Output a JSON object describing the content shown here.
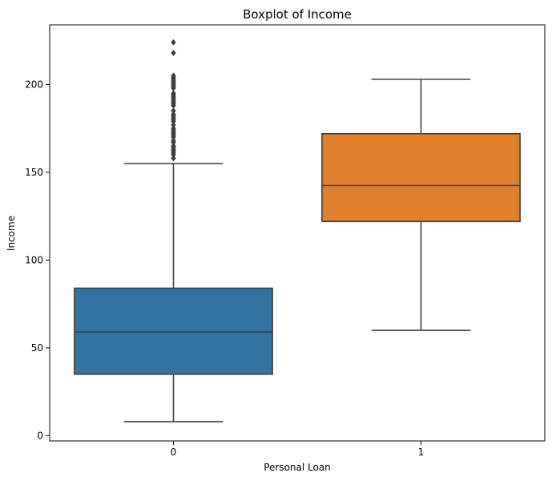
{
  "chart_data": {
    "type": "boxplot",
    "title": "Boxplot of Income",
    "xlabel": "Personal Loan",
    "ylabel": "Income",
    "categories": [
      "0",
      "1"
    ],
    "ylim": [
      -3,
      234
    ],
    "yticks": [
      0,
      50,
      100,
      150,
      200
    ],
    "grid": false,
    "boxes": [
      {
        "category": "0",
        "color": "#3274a1",
        "whisker_low": 8,
        "q1": 35,
        "median": 59,
        "q3": 84,
        "whisker_high": 155,
        "outliers": [
          158,
          160,
          161,
          162,
          163,
          164,
          165,
          167,
          168,
          170,
          171,
          172,
          173,
          174,
          175,
          177,
          179,
          180,
          181,
          182,
          183,
          185,
          188,
          189,
          190,
          191,
          192,
          193,
          194,
          195,
          198,
          199,
          200,
          201,
          202,
          203,
          204,
          205,
          218,
          224
        ]
      },
      {
        "category": "1",
        "color": "#e1812c",
        "whisker_low": 60,
        "q1": 122,
        "median": 142.5,
        "q3": 172,
        "whisker_high": 203,
        "outliers": []
      }
    ]
  }
}
